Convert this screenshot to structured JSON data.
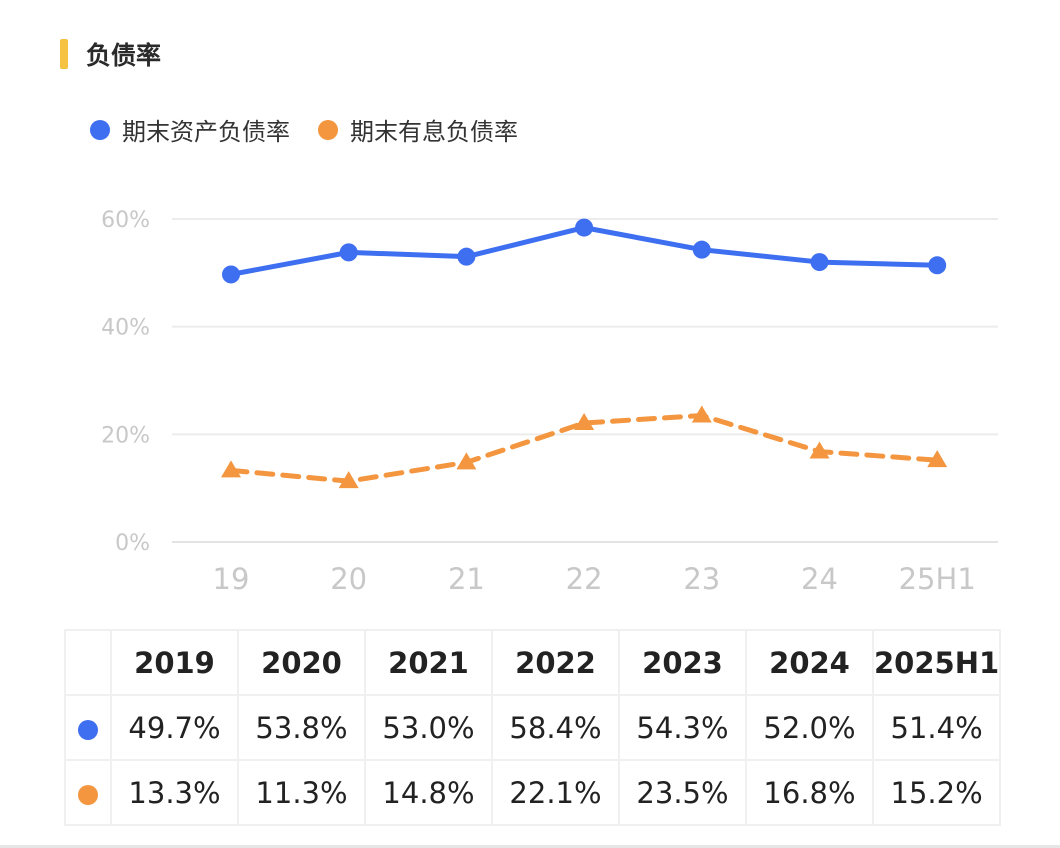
{
  "header": {
    "title": "负债率",
    "accent_color": "#F5C242"
  },
  "legend": [
    {
      "label": "期末资产负债率",
      "color": "#3E6FF0"
    },
    {
      "label": "期末有息负债率",
      "color": "#F3963F"
    }
  ],
  "chart_data": {
    "type": "line",
    "categories": [
      "19",
      "20",
      "21",
      "22",
      "23",
      "24",
      "25H1"
    ],
    "y_ticks": [
      "0%",
      "20%",
      "40%",
      "60%"
    ],
    "ylim": [
      0,
      60
    ],
    "grid": true,
    "legend_position": "top-left",
    "series": [
      {
        "name": "期末资产负债率",
        "values": [
          49.7,
          53.8,
          53.0,
          58.4,
          54.3,
          52.0,
          51.4
        ],
        "color": "#3E6FF0",
        "line_style": "solid",
        "marker": "circle"
      },
      {
        "name": "期末有息负债率",
        "values": [
          13.3,
          11.3,
          14.8,
          22.1,
          23.5,
          16.8,
          15.2
        ],
        "color": "#F3963F",
        "line_style": "dashed",
        "marker": "triangle"
      }
    ]
  },
  "table": {
    "headers": [
      "",
      "2019",
      "2020",
      "2021",
      "2022",
      "2023",
      "2024",
      "2025H1"
    ],
    "rows": [
      {
        "color": "#3E6FF0",
        "cells": [
          "49.7%",
          "53.8%",
          "53.0%",
          "58.4%",
          "54.3%",
          "52.0%",
          "51.4%"
        ]
      },
      {
        "color": "#F3963F",
        "cells": [
          "13.3%",
          "11.3%",
          "14.8%",
          "22.1%",
          "23.5%",
          "16.8%",
          "15.2%"
        ]
      }
    ]
  }
}
